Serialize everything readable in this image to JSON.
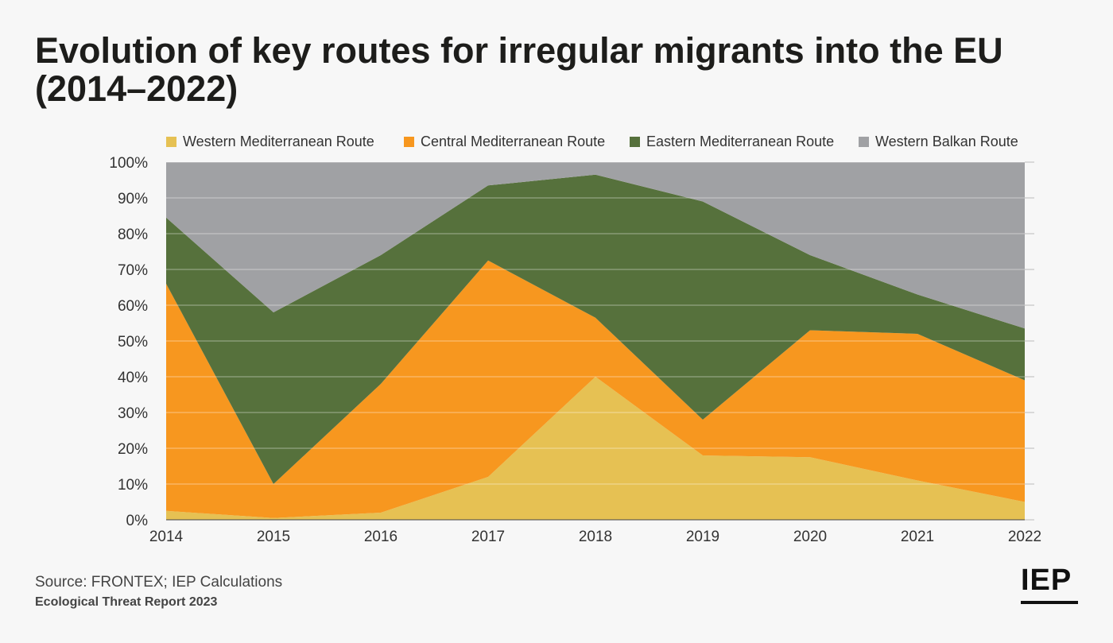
{
  "header": {
    "title_line1": "Evolution of key routes for irregular migrants into the EU",
    "title_line2": "(2014–2022)"
  },
  "footer": {
    "source": "Source: FRONTEX; IEP Calculations",
    "report": "Ecological Threat Report 2023",
    "logo": "IEP"
  },
  "chart_data": {
    "type": "area",
    "stacked": true,
    "categories": [
      "2014",
      "2015",
      "2016",
      "2017",
      "2018",
      "2019",
      "2020",
      "2021",
      "2022"
    ],
    "series": [
      {
        "name": "Western Mediterranean Route",
        "color": "#e6c153",
        "values": [
          2.5,
          0.5,
          2,
          12,
          40,
          18,
          17.5,
          11,
          5
        ]
      },
      {
        "name": "Central Mediterranean Route",
        "color": "#f7971f",
        "values": [
          63.5,
          9.5,
          36,
          60.5,
          16.5,
          10,
          35.5,
          41,
          34
        ]
      },
      {
        "name": "Eastern Mediterranean Route",
        "color": "#56713c",
        "values": [
          18.5,
          48,
          36,
          21,
          40,
          61,
          21,
          11,
          14.5
        ]
      },
      {
        "name": "Western Balkan Route",
        "color": "#a0a1a4",
        "values": [
          15.5,
          42,
          26,
          6.5,
          3.5,
          11,
          26,
          37,
          46.5
        ]
      }
    ],
    "ylim": [
      0,
      100
    ],
    "yticks": [
      "0%",
      "10%",
      "20%",
      "30%",
      "40%",
      "50%",
      "60%",
      "70%",
      "80%",
      "90%",
      "100%"
    ],
    "grid": true,
    "legend_position": "top"
  }
}
